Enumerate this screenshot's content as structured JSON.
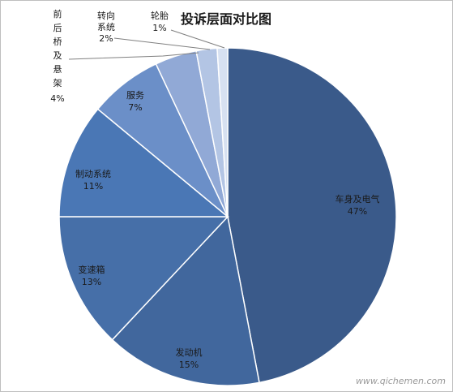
{
  "chart_data": {
    "type": "pie",
    "title": "投诉层面对比图",
    "slices": [
      {
        "label": "车身及电气",
        "value": 47,
        "percent_label": "47%",
        "color": "#3a5a8a"
      },
      {
        "label": "发动机",
        "value": 15,
        "percent_label": "15%",
        "color": "#41679d"
      },
      {
        "label": "变速箱",
        "value": 13,
        "percent_label": "13%",
        "color": "#466fa8"
      },
      {
        "label": "制动系统",
        "value": 11,
        "percent_label": "11%",
        "color": "#4a77b5"
      },
      {
        "label": "服务",
        "value": 7,
        "percent_label": "7%",
        "color": "#6b8fc8"
      },
      {
        "label": "前后桥及悬架",
        "value": 4,
        "percent_label": "4%",
        "color": "#91a9d6"
      },
      {
        "label": "转向系统",
        "value": 2,
        "percent_label": "2%",
        "color": "#b3c5e4"
      },
      {
        "label": "轮胎",
        "value": 1,
        "percent_label": "1%",
        "color": "#d7e1f1"
      }
    ],
    "legend": "none"
  },
  "watermark": "www.qichemen.com"
}
